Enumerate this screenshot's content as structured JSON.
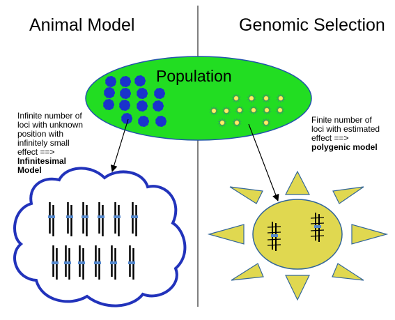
{
  "headings": {
    "left": "Animal Model",
    "right": "Genomic Selection"
  },
  "population": {
    "label": "Population"
  },
  "notes": {
    "left_lines": [
      "Infinite number of",
      "loci with unknown",
      "position with",
      "infinitely small",
      "effect ==>"
    ],
    "left_bold_lines": [
      "Infinitesimal",
      "Model"
    ],
    "right_lines": [
      "Finite number of",
      "loci with estimated",
      "effect ==>"
    ],
    "right_bold_lines": [
      "polygenic model"
    ]
  },
  "colors": {
    "population_fill": "#22dd22",
    "population_stroke": "#2255aa",
    "blob_fill": "#1a33cc",
    "star_fill": "#ffee66",
    "star_spikes": "#339966",
    "cloud_stroke": "#2233bb",
    "sun_fill": "#e0d850",
    "sun_stroke": "#336699",
    "marker_color": "#5588cc"
  },
  "icons": {
    "animal_blob": "blue-blob-icon",
    "snp_star": "starburst-icon"
  }
}
